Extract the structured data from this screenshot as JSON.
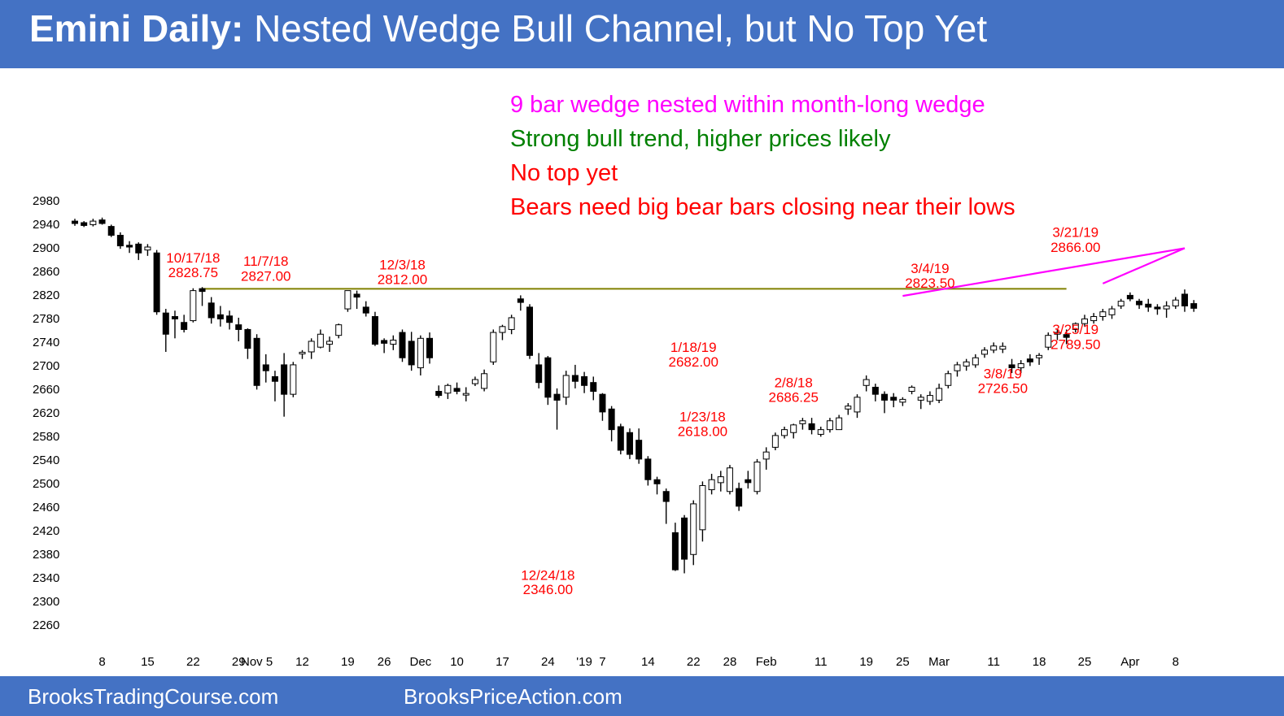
{
  "header": {
    "title_bold": "Emini Daily:",
    "title_rest": " Nested Wedge Bull Channel, but No Top Yet"
  },
  "footer": {
    "left": "BrooksTradingCourse.com",
    "center": "BrooksPriceAction.com"
  },
  "notes": [
    {
      "text": "9 bar wedge nested within month-long wedge",
      "color": "#ff00ff"
    },
    {
      "text": "Strong bull trend, higher prices likely",
      "color": "#008000"
    },
    {
      "text": "No top yet",
      "color": "#ff0000"
    },
    {
      "text": "Bears need big bear bars closing near their lows",
      "color": "#ff0000"
    }
  ],
  "chart_data": {
    "type": "candlestick",
    "ylim": [
      2240,
      2990
    ],
    "y_ticks": [
      2980,
      2940,
      2900,
      2860,
      2820,
      2780,
      2740,
      2700,
      2660,
      2620,
      2580,
      2540,
      2500,
      2460,
      2420,
      2380,
      2340,
      2300,
      2260
    ],
    "x_labels": [
      {
        "bar": 3,
        "text": "8"
      },
      {
        "bar": 8,
        "text": "15"
      },
      {
        "bar": 13,
        "text": "22"
      },
      {
        "bar": 18,
        "text": "29"
      },
      {
        "bar": 20,
        "text": "Nov 5"
      },
      {
        "bar": 25,
        "text": "12"
      },
      {
        "bar": 30,
        "text": "19"
      },
      {
        "bar": 34,
        "text": "26"
      },
      {
        "bar": 38,
        "text": "Dec"
      },
      {
        "bar": 42,
        "text": "10"
      },
      {
        "bar": 47,
        "text": "17"
      },
      {
        "bar": 52,
        "text": "24"
      },
      {
        "bar": 56,
        "text": "'19"
      },
      {
        "bar": 58,
        "text": "7"
      },
      {
        "bar": 63,
        "text": "14"
      },
      {
        "bar": 68,
        "text": "22"
      },
      {
        "bar": 72,
        "text": "28"
      },
      {
        "bar": 76,
        "text": "Feb"
      },
      {
        "bar": 82,
        "text": "11"
      },
      {
        "bar": 87,
        "text": "19"
      },
      {
        "bar": 91,
        "text": "25"
      },
      {
        "bar": 95,
        "text": "Mar"
      },
      {
        "bar": 101,
        "text": "11"
      },
      {
        "bar": 106,
        "text": "18"
      },
      {
        "bar": 111,
        "text": "25"
      },
      {
        "bar": 116,
        "text": "Apr"
      },
      {
        "bar": 121,
        "text": "8"
      }
    ],
    "candles": [
      [
        2944,
        2948,
        2936,
        2940
      ],
      [
        2940,
        2944,
        2934,
        2938
      ],
      [
        2938,
        2948,
        2935,
        2944
      ],
      [
        2946,
        2950,
        2938,
        2940
      ],
      [
        2935,
        2938,
        2917,
        2920
      ],
      [
        2920,
        2925,
        2897,
        2902
      ],
      [
        2903,
        2910,
        2890,
        2900
      ],
      [
        2905,
        2908,
        2878,
        2890
      ],
      [
        2895,
        2905,
        2885,
        2900
      ],
      [
        2890,
        2895,
        2785,
        2790
      ],
      [
        2788,
        2795,
        2722,
        2752
      ],
      [
        2782,
        2792,
        2745,
        2778
      ],
      [
        2772,
        2785,
        2755,
        2760
      ],
      [
        2775,
        2830,
        2772,
        2826
      ],
      [
        2828,
        2832,
        2800,
        2826
      ],
      [
        2805,
        2815,
        2770,
        2780
      ],
      [
        2785,
        2800,
        2765,
        2778
      ],
      [
        2783,
        2792,
        2760,
        2772
      ],
      [
        2768,
        2780,
        2740,
        2760
      ],
      [
        2760,
        2762,
        2710,
        2728
      ],
      [
        2745,
        2752,
        2658,
        2665
      ],
      [
        2700,
        2718,
        2670,
        2690
      ],
      [
        2680,
        2690,
        2638,
        2672
      ],
      [
        2700,
        2720,
        2612,
        2650
      ],
      [
        2650,
        2705,
        2645,
        2700
      ],
      [
        2720,
        2725,
        2710,
        2720
      ],
      [
        2722,
        2745,
        2710,
        2740
      ],
      [
        2730,
        2760,
        2728,
        2752
      ],
      [
        2735,
        2748,
        2722,
        2740
      ],
      [
        2750,
        2770,
        2745,
        2768
      ],
      [
        2795,
        2826,
        2790,
        2826
      ],
      [
        2820,
        2826,
        2795,
        2815
      ],
      [
        2798,
        2808,
        2782,
        2788
      ],
      [
        2782,
        2790,
        2732,
        2735
      ],
      [
        2740,
        2745,
        2720,
        2738
      ],
      [
        2735,
        2750,
        2725,
        2742
      ],
      [
        2755,
        2760,
        2705,
        2712
      ],
      [
        2740,
        2756,
        2690,
        2700
      ],
      [
        2695,
        2750,
        2682,
        2745
      ],
      [
        2745,
        2755,
        2702,
        2712
      ],
      [
        2655,
        2665,
        2644,
        2648
      ],
      [
        2652,
        2668,
        2642,
        2665
      ],
      [
        2660,
        2670,
        2650,
        2655
      ],
      [
        2650,
        2662,
        2638,
        2650
      ],
      [
        2668,
        2680,
        2664,
        2675
      ],
      [
        2660,
        2692,
        2655,
        2685
      ],
      [
        2705,
        2760,
        2700,
        2755
      ],
      [
        2755,
        2768,
        2742,
        2765
      ],
      [
        2760,
        2785,
        2752,
        2780
      ],
      [
        2812,
        2818,
        2792,
        2806
      ],
      [
        2798,
        2803,
        2710,
        2716
      ],
      [
        2700,
        2720,
        2660,
        2670
      ],
      [
        2712,
        2715,
        2632,
        2645
      ],
      [
        2650,
        2660,
        2590,
        2640
      ],
      [
        2645,
        2690,
        2632,
        2682
      ],
      [
        2682,
        2700,
        2660,
        2672
      ],
      [
        2680,
        2688,
        2652,
        2665
      ],
      [
        2670,
        2680,
        2640,
        2655
      ],
      [
        2650,
        2652,
        2605,
        2620
      ],
      [
        2625,
        2630,
        2570,
        2590
      ],
      [
        2595,
        2600,
        2548,
        2555
      ],
      [
        2585,
        2592,
        2540,
        2548
      ],
      [
        2572,
        2592,
        2532,
        2540
      ],
      [
        2540,
        2545,
        2495,
        2505
      ],
      [
        2505,
        2510,
        2480,
        2498
      ],
      [
        2485,
        2490,
        2430,
        2468
      ],
      [
        2415,
        2432,
        2350,
        2352
      ],
      [
        2440,
        2445,
        2346,
        2370
      ],
      [
        2378,
        2470,
        2360,
        2464
      ],
      [
        2420,
        2502,
        2400,
        2495
      ],
      [
        2488,
        2515,
        2480,
        2505
      ],
      [
        2500,
        2520,
        2485,
        2510
      ],
      [
        2485,
        2530,
        2480,
        2525
      ],
      [
        2490,
        2500,
        2452,
        2460
      ],
      [
        2505,
        2520,
        2490,
        2500
      ],
      [
        2485,
        2540,
        2480,
        2535
      ],
      [
        2540,
        2560,
        2522,
        2552
      ],
      [
        2560,
        2585,
        2555,
        2580
      ],
      [
        2580,
        2595,
        2575,
        2590
      ],
      [
        2585,
        2600,
        2575,
        2598
      ],
      [
        2600,
        2610,
        2590,
        2605
      ],
      [
        2600,
        2610,
        2582,
        2590
      ],
      [
        2582,
        2595,
        2578,
        2590
      ],
      [
        2590,
        2610,
        2585,
        2605
      ],
      [
        2590,
        2615,
        2590,
        2610
      ],
      [
        2625,
        2635,
        2615,
        2630
      ],
      [
        2620,
        2650,
        2610,
        2645
      ],
      [
        2665,
        2682,
        2655,
        2675
      ],
      [
        2662,
        2668,
        2638,
        2650
      ],
      [
        2650,
        2655,
        2618,
        2640
      ],
      [
        2645,
        2652,
        2628,
        2640
      ],
      [
        2638,
        2645,
        2630,
        2640
      ],
      [
        2655,
        2665,
        2650,
        2662
      ],
      [
        2640,
        2650,
        2625,
        2645
      ],
      [
        2638,
        2655,
        2632,
        2648
      ],
      [
        2640,
        2668,
        2635,
        2660
      ],
      [
        2665,
        2690,
        2660,
        2685
      ],
      [
        2690,
        2705,
        2680,
        2700
      ],
      [
        2698,
        2710,
        2690,
        2705
      ],
      [
        2700,
        2718,
        2695,
        2712
      ],
      [
        2718,
        2730,
        2712,
        2725
      ],
      [
        2725,
        2738,
        2720,
        2732
      ],
      [
        2728,
        2738,
        2720,
        2730
      ],
      [
        2700,
        2710,
        2686,
        2695
      ],
      [
        2695,
        2708,
        2686,
        2702
      ],
      [
        2710,
        2718,
        2698,
        2705
      ],
      [
        2712,
        2720,
        2700,
        2716
      ],
      [
        2730,
        2755,
        2725,
        2750
      ],
      [
        2752,
        2760,
        2742,
        2755
      ],
      [
        2750,
        2760,
        2735,
        2748
      ],
      [
        2760,
        2772,
        2755,
        2770
      ],
      [
        2770,
        2785,
        2765,
        2778
      ],
      [
        2775,
        2788,
        2770,
        2782
      ],
      [
        2782,
        2795,
        2775,
        2790
      ],
      [
        2785,
        2800,
        2778,
        2795
      ],
      [
        2800,
        2812,
        2795,
        2808
      ],
      [
        2818,
        2823,
        2808,
        2812
      ],
      [
        2808,
        2812,
        2795,
        2802
      ],
      [
        2803,
        2812,
        2790,
        2798
      ],
      [
        2798,
        2803,
        2785,
        2795
      ],
      [
        2795,
        2808,
        2780,
        2800
      ],
      [
        2800,
        2815,
        2795,
        2810
      ],
      [
        2820,
        2828,
        2790,
        2800
      ],
      [
        2804,
        2810,
        2790,
        2796
      ]
    ],
    "level_line": {
      "y": 2829,
      "from_bar": 14,
      "to_bar": 109,
      "color": "#808000"
    },
    "wedge_lines": [
      {
        "from": [
          91,
          2817
        ],
        "to": [
          122,
          2898
        ],
        "color": "#ff00ff"
      },
      {
        "from": [
          113,
          2838
        ],
        "to": [
          122,
          2898
        ],
        "color": "#ff00ff"
      }
    ],
    "annotations": [
      {
        "bar": 13,
        "y": 2874,
        "text": "10/17/18"
      },
      {
        "bar": 13,
        "y": 2849,
        "text": "2828.75"
      },
      {
        "bar": 21,
        "y": 2868,
        "text": "11/7/18"
      },
      {
        "bar": 21,
        "y": 2843,
        "text": "2827.00"
      },
      {
        "bar": 36,
        "y": 2862,
        "text": "12/3/18"
      },
      {
        "bar": 36,
        "y": 2837,
        "text": "2812.00"
      },
      {
        "bar": 52,
        "y": 2335,
        "text": "12/24/18"
      },
      {
        "bar": 52,
        "y": 2311,
        "text": "2346.00"
      },
      {
        "bar": 68,
        "y": 2722,
        "text": "1/18/19"
      },
      {
        "bar": 68,
        "y": 2697,
        "text": "2682.00"
      },
      {
        "bar": 69,
        "y": 2604,
        "text": "1/23/18"
      },
      {
        "bar": 69,
        "y": 2579,
        "text": "2618.00"
      },
      {
        "bar": 79,
        "y": 2662,
        "text": "2/8/18"
      },
      {
        "bar": 79,
        "y": 2637,
        "text": "2686.25"
      },
      {
        "bar": 94,
        "y": 2856,
        "text": "3/4/19"
      },
      {
        "bar": 94,
        "y": 2831,
        "text": "2823.50"
      },
      {
        "bar": 102,
        "y": 2677,
        "text": "3/8/19"
      },
      {
        "bar": 102,
        "y": 2652,
        "text": "2726.50"
      },
      {
        "bar": 110,
        "y": 2917,
        "text": "3/21/19"
      },
      {
        "bar": 110,
        "y": 2892,
        "text": "2866.00"
      },
      {
        "bar": 110,
        "y": 2752,
        "text": "3/25/19"
      },
      {
        "bar": 110,
        "y": 2727,
        "text": "2789.50"
      }
    ]
  }
}
